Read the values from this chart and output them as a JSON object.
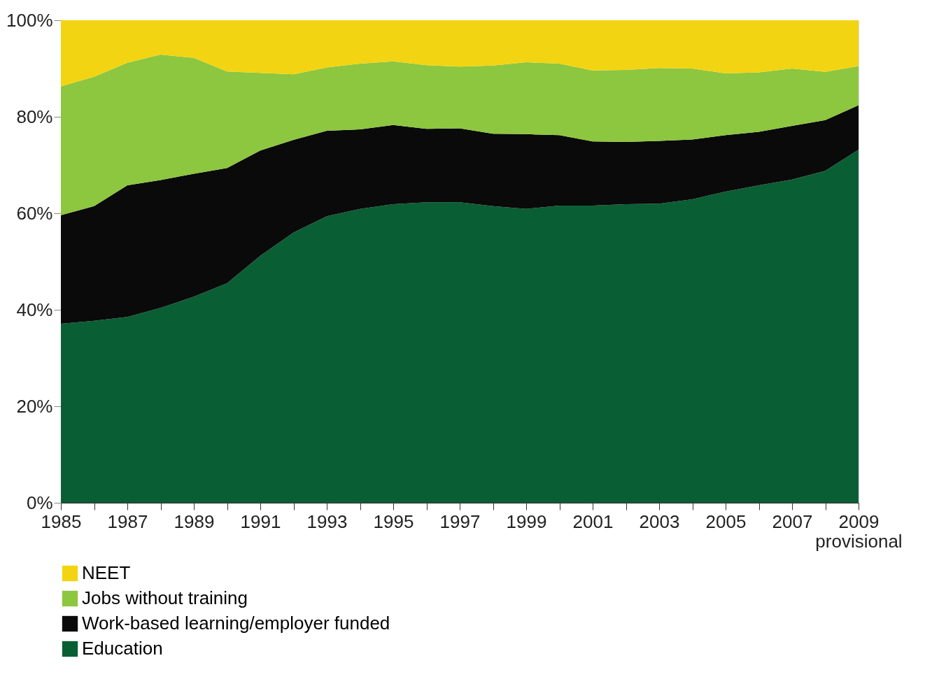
{
  "chart_data": {
    "type": "area",
    "stacked": true,
    "x": [
      1985,
      1986,
      1987,
      1988,
      1989,
      1990,
      1991,
      1992,
      1993,
      1994,
      1995,
      1996,
      1997,
      1998,
      1999,
      2000,
      2001,
      2002,
      2003,
      2004,
      2005,
      2006,
      2007,
      2008,
      2009
    ],
    "series": [
      {
        "name": "Education",
        "color": "#0a5e34",
        "values": [
          37.1,
          37.7,
          38.5,
          40.4,
          42.7,
          45.5,
          51.2,
          56.0,
          59.4,
          60.9,
          61.9,
          62.3,
          62.3,
          61.5,
          60.9,
          61.6,
          61.6,
          61.9,
          62.0,
          62.9,
          64.5,
          65.8,
          67.0,
          68.8,
          73.2
        ]
      },
      {
        "name": "Work-based learning/employer funded",
        "color": "#0a0a0a",
        "values": [
          22.5,
          23.8,
          27.3,
          26.5,
          25.5,
          23.9,
          21.8,
          19.2,
          17.7,
          16.5,
          16.4,
          15.2,
          15.3,
          15.0,
          15.5,
          14.6,
          13.3,
          12.9,
          13.0,
          12.4,
          11.7,
          11.1,
          11.1,
          10.5,
          9.2
        ]
      },
      {
        "name": "Jobs without training",
        "color": "#8dc63f",
        "values": [
          26.7,
          26.8,
          25.4,
          26.0,
          24.0,
          20.0,
          16.1,
          13.6,
          13.1,
          13.6,
          13.2,
          13.2,
          12.8,
          14.1,
          14.9,
          14.8,
          14.7,
          14.9,
          15.1,
          14.7,
          12.8,
          12.3,
          11.9,
          10.0,
          8.1
        ]
      },
      {
        "name": "NEET",
        "color": "#f2d412",
        "values": [
          13.7,
          11.7,
          8.8,
          7.1,
          7.8,
          10.6,
          10.9,
          11.2,
          9.8,
          9.0,
          8.5,
          9.3,
          9.6,
          9.4,
          8.7,
          9.0,
          10.4,
          10.3,
          9.9,
          10.0,
          11.0,
          10.8,
          10.0,
          10.7,
          9.5
        ]
      }
    ],
    "xlim": [
      1985,
      2009
    ],
    "xticks": [
      1985,
      {
        "value": 1986,
        "label": null
      },
      1987,
      {
        "value": 1988,
        "label": null
      },
      1989,
      {
        "value": 1990,
        "label": null
      },
      1991,
      {
        "value": 1992,
        "label": null
      },
      1993,
      {
        "value": 1994,
        "label": null
      },
      1995,
      {
        "value": 1996,
        "label": null
      },
      1997,
      {
        "value": 1998,
        "label": null
      },
      1999,
      {
        "value": 2000,
        "label": null
      },
      2001,
      {
        "value": 2002,
        "label": null
      },
      2003,
      {
        "value": 2004,
        "label": null
      },
      2005,
      {
        "value": 2006,
        "label": null
      },
      2007,
      {
        "value": 2008,
        "label": null
      },
      {
        "value": 2009,
        "label": "2009\nprovisional"
      }
    ],
    "ylim": [
      0,
      100
    ],
    "yticks": [
      {
        "value": 0,
        "label": "0%"
      },
      {
        "value": 20,
        "label": "20%"
      },
      {
        "value": 40,
        "label": "40%"
      },
      {
        "value": 60,
        "label": "60%"
      },
      {
        "value": 80,
        "label": "80%"
      },
      {
        "value": 100,
        "label": "100%"
      }
    ],
    "grid": false,
    "legend": "bottom left"
  }
}
